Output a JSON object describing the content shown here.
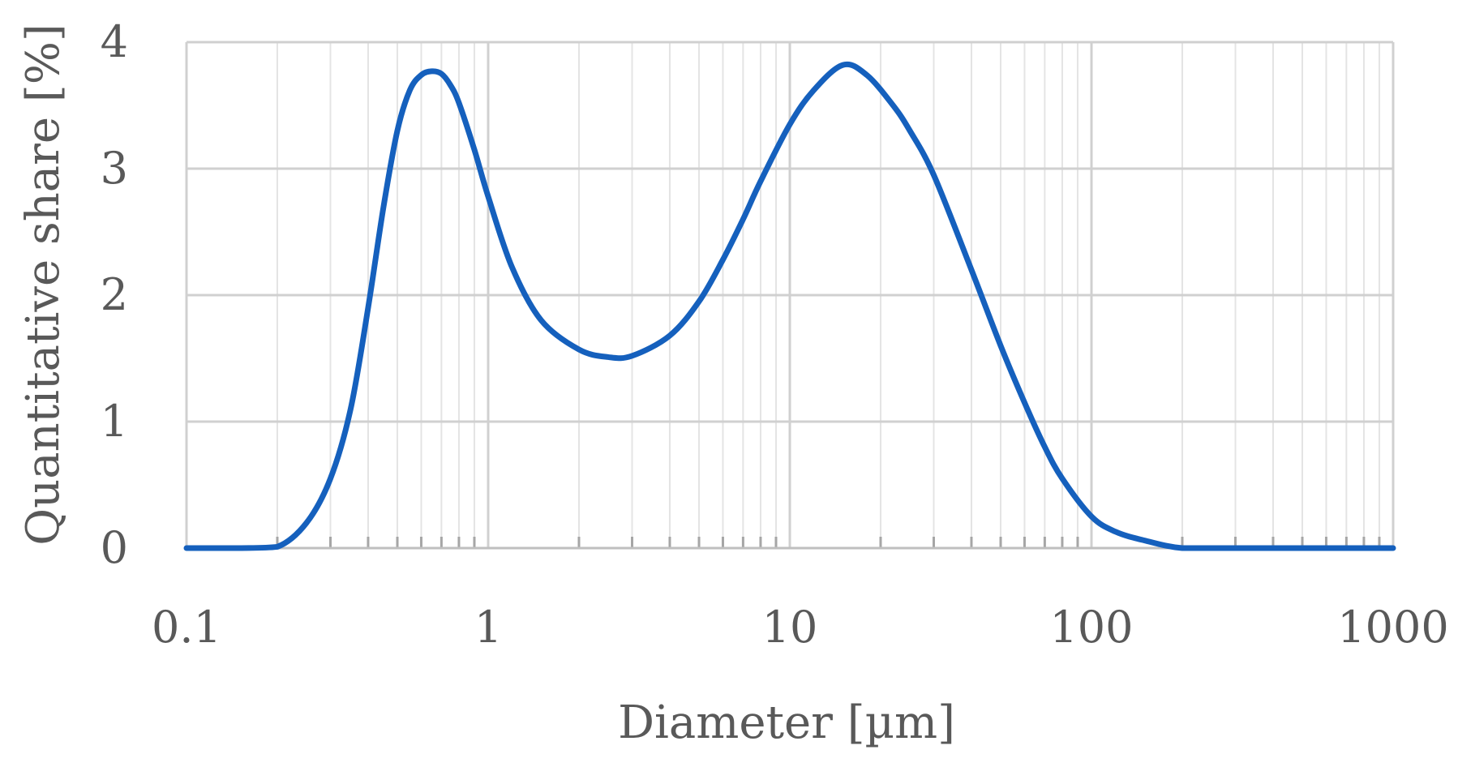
{
  "chart_data": {
    "type": "line",
    "title": "",
    "xlabel": "Diameter [µm]",
    "ylabel": "Quantitative share [%]",
    "x_scale": "log",
    "xlim": [
      0.1,
      1000
    ],
    "ylim": [
      0,
      4
    ],
    "x_ticks": [
      "0.1",
      "1",
      "10",
      "100",
      "1000"
    ],
    "y_ticks": [
      "0",
      "1",
      "2",
      "3",
      "4"
    ],
    "grid": true,
    "legend": "none",
    "series": [
      {
        "color": "#1560bd",
        "x": [
          0.1,
          0.15,
          0.2,
          0.25,
          0.3,
          0.35,
          0.4,
          0.45,
          0.5,
          0.55,
          0.6,
          0.65,
          0.7,
          0.75,
          0.8,
          0.9,
          1.0,
          1.2,
          1.5,
          2.0,
          2.5,
          3.0,
          4.0,
          5.0,
          6.0,
          7.0,
          8.0,
          10.0,
          12.0,
          15.0,
          18.0,
          22.0,
          25.0,
          30.0,
          40.0,
          50.0,
          60.0,
          70.0,
          80.0,
          100.0,
          120.0,
          150.0,
          200.0,
          300.0,
          500.0,
          1000.0
        ],
        "y": [
          0,
          0,
          0.01,
          0.2,
          0.55,
          1.1,
          1.9,
          2.7,
          3.3,
          3.62,
          3.74,
          3.77,
          3.75,
          3.66,
          3.52,
          3.15,
          2.78,
          2.22,
          1.8,
          1.57,
          1.51,
          1.52,
          1.68,
          1.95,
          2.28,
          2.6,
          2.9,
          3.35,
          3.62,
          3.82,
          3.74,
          3.5,
          3.3,
          2.95,
          2.2,
          1.6,
          1.15,
          0.8,
          0.55,
          0.25,
          0.13,
          0.06,
          0,
          0,
          0,
          0
        ]
      }
    ]
  }
}
